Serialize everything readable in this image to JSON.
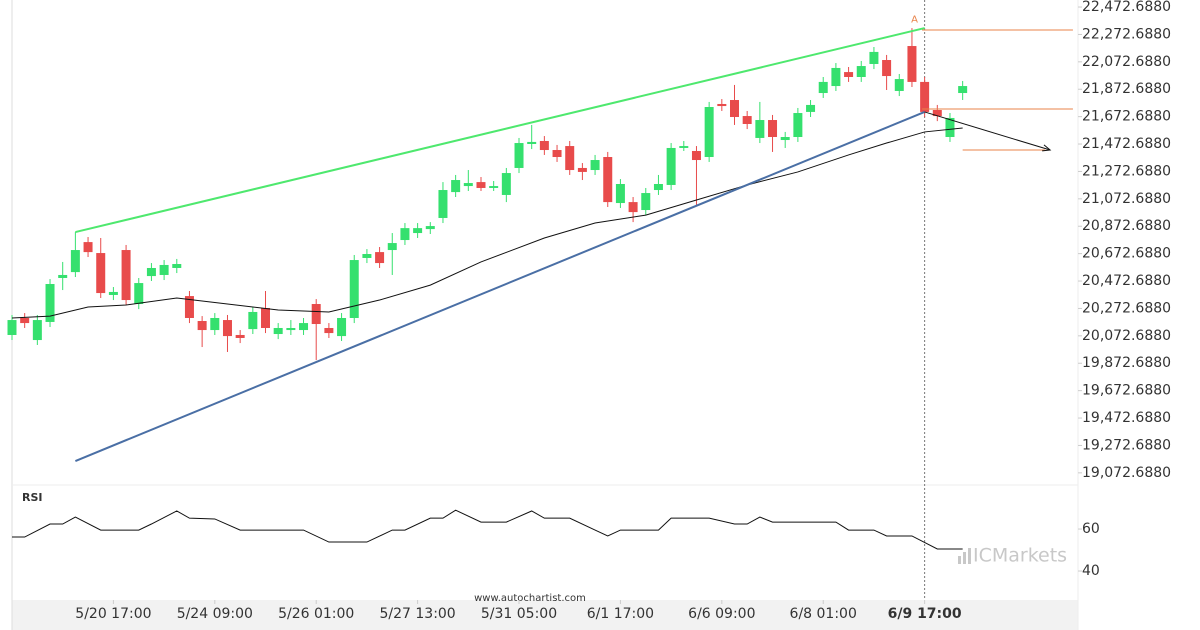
{
  "chart_data": {
    "type": "candlestick",
    "up_color": "#35e06e",
    "down_color": "#e84b4b",
    "candles": {
      "open": [
        20079,
        20203,
        20042,
        20174,
        20495,
        20538,
        20757,
        20677,
        20371,
        20699,
        20305,
        20509,
        20517,
        20568,
        20363,
        20181,
        20115,
        20188,
        20079,
        20122,
        20276,
        20086,
        20115,
        20115,
        20305,
        20130,
        20071,
        20203,
        20641,
        20684,
        20699,
        20772,
        20823,
        20852,
        20933,
        21122,
        21166,
        21195,
        21152,
        21101,
        21298,
        21473,
        21495,
        21429,
        21458,
        21298,
        21283,
        21378,
        21042,
        21049,
        20991,
        21137,
        21174,
        21444,
        21422,
        21378,
        21765,
        21794,
        21677,
        21517,
        21648,
        21502,
        21524,
        21707,
        21845,
        21896,
        21998,
        21962,
        22057,
        22086,
        21860,
        22188,
        21926,
        21721,
        21524,
        21845
      ],
      "high": [
        20225,
        20239,
        20225,
        20487,
        20612,
        20830,
        20794,
        20787,
        20429,
        20736,
        20495,
        20604,
        20626,
        20634,
        20400,
        20217,
        20239,
        20225,
        20115,
        20283,
        20400,
        20166,
        20188,
        20203,
        20341,
        20166,
        20239,
        20663,
        20706,
        20721,
        20823,
        20896,
        20896,
        20903,
        21195,
        21247,
        21283,
        21232,
        21203,
        21298,
        21517,
        21612,
        21531,
        21466,
        21495,
        21334,
        21393,
        21415,
        21217,
        21086,
        21152,
        21247,
        21480,
        21495,
        21458,
        21780,
        21801,
        21904,
        21714,
        21780,
        21685,
        21561,
        21736,
        21794,
        21962,
        22064,
        22035,
        22079,
        22181,
        22123,
        21984,
        22319,
        21962,
        21758,
        21699,
        21933
      ],
      "low": [
        20042,
        20130,
        20006,
        20137,
        20407,
        20502,
        20648,
        20349,
        20334,
        20298,
        20268,
        20473,
        20480,
        20531,
        20166,
        19991,
        20079,
        19955,
        20020,
        20086,
        20093,
        20049,
        20079,
        20079,
        19896,
        20057,
        20035,
        20166,
        20604,
        20568,
        20517,
        20736,
        20787,
        20816,
        20896,
        21086,
        21130,
        21130,
        21130,
        21049,
        21261,
        21436,
        21393,
        21342,
        21247,
        21210,
        21247,
        21013,
        21006,
        20903,
        20954,
        21101,
        21137,
        21422,
        21028,
        21342,
        21714,
        21612,
        21582,
        21480,
        21415,
        21444,
        21488,
        21670,
        21809,
        21860,
        21926,
        21926,
        22020,
        21867,
        21823,
        21889,
        21670,
        21640,
        21488,
        21794
      ],
      "close": [
        20188,
        20166,
        20188,
        20451,
        20517,
        20699,
        20684,
        20385,
        20393,
        20334,
        20458,
        20568,
        20590,
        20597,
        20203,
        20115,
        20203,
        20071,
        20057,
        20247,
        20130,
        20130,
        20130,
        20166,
        20159,
        20093,
        20203,
        20626,
        20670,
        20604,
        20750,
        20859,
        20859,
        20874,
        21137,
        21210,
        21188,
        21152,
        21166,
        21261,
        21480,
        21488,
        21429,
        21378,
        21283,
        21269,
        21356,
        21049,
        21181,
        20976,
        21115,
        21181,
        21444,
        21458,
        21356,
        21743,
        21750,
        21670,
        21619,
        21648,
        21524,
        21524,
        21699,
        21758,
        21926,
        22028,
        21962,
        22042,
        22145,
        21969,
        21947,
        21926,
        21707,
        21677,
        21663,
        21896
      ]
    },
    "xlim": [
      0,
      84.1
    ],
    "xticks": [
      {
        "value": 8,
        "label": "5/20 17:00"
      },
      {
        "value": 16,
        "label": "5/24 09:00"
      },
      {
        "value": 24,
        "label": "5/26 01:00"
      },
      {
        "value": 32,
        "label": "5/27 13:00"
      },
      {
        "value": 40,
        "label": "5/31 05:00"
      },
      {
        "value": 48,
        "label": "6/1 17:00"
      },
      {
        "value": 56,
        "label": "6/6 09:00"
      },
      {
        "value": 64,
        "label": "6/8 01:00"
      },
      {
        "value": 72,
        "label": "6/9 17:00"
      }
    ],
    "highlight_tick": 72,
    "ylim": [
      18984,
      22524
    ],
    "yticks": [
      {
        "value": 22472.688,
        "label": "22,472.6880"
      },
      {
        "value": 22272.688,
        "label": "22,272.6880"
      },
      {
        "value": 22072.688,
        "label": "22,072.6880"
      },
      {
        "value": 21872.688,
        "label": "21,872.6880"
      },
      {
        "value": 21672.688,
        "label": "21,672.6880"
      },
      {
        "value": 21472.688,
        "label": "21,472.6880"
      },
      {
        "value": 21272.688,
        "label": "21,272.6880"
      },
      {
        "value": 21072.688,
        "label": "21,072.6880"
      },
      {
        "value": 20872.688,
        "label": "20,872.6880"
      },
      {
        "value": 20672.688,
        "label": "20,672.6880"
      },
      {
        "value": 20472.688,
        "label": "20,472.6880"
      },
      {
        "value": 20272.688,
        "label": "20,272.6880"
      },
      {
        "value": 20072.688,
        "label": "20,072.6880"
      },
      {
        "value": 19872.688,
        "label": "19,872.6880"
      },
      {
        "value": 19672.688,
        "label": "19,672.6880"
      },
      {
        "value": 19472.688,
        "label": "19,472.6880"
      },
      {
        "value": 19272.688,
        "label": "19,272.6880"
      },
      {
        "value": 19072.688,
        "label": "19,072.6880"
      }
    ],
    "ma": {
      "color": "#111111",
      "x": [
        0,
        3,
        6,
        9,
        13,
        17,
        21,
        25,
        29,
        33,
        37,
        42,
        46,
        50,
        54,
        58,
        62,
        66,
        69,
        72,
        75
      ],
      "values": [
        20203,
        20217,
        20283,
        20298,
        20349,
        20305,
        20261,
        20247,
        20334,
        20443,
        20612,
        20787,
        20896,
        20954,
        21064,
        21174,
        21269,
        21393,
        21480,
        21561,
        21590
      ]
    },
    "trendlines": [
      {
        "color": "#4ee86e",
        "x": [
          5,
          72
        ],
        "values": [
          20830,
          22319
        ]
      },
      {
        "color": "#4a6fa5",
        "x": [
          5,
          72
        ],
        "values": [
          19159,
          21707
        ]
      }
    ],
    "levels": [
      {
        "color": "#e8834a",
        "value": 22305,
        "x": [
          71.8,
          83.7
        ]
      },
      {
        "color": "#e8834a",
        "value": 21728,
        "x": [
          71.8,
          83.7
        ]
      },
      {
        "color": "#e8834a",
        "value": 21429,
        "x": [
          75,
          81.5
        ]
      }
    ],
    "arrow": {
      "color": "#111111",
      "x": [
        72,
        81.9
      ],
      "values": [
        21707,
        21429
      ]
    },
    "marker": {
      "label": "A",
      "color": "#e8834a",
      "x": 71.2,
      "value": 22380
    },
    "rsi": {
      "label": "RSI",
      "color": "#111111",
      "ylim": [
        26.2,
        78.6
      ],
      "yticks": [
        40,
        60
      ],
      "x": [
        0,
        1,
        3,
        4,
        5,
        7,
        10,
        11,
        13,
        14,
        16,
        18,
        23,
        25,
        28,
        30,
        31,
        33,
        34,
        35,
        37,
        39,
        41,
        42,
        44,
        46,
        47,
        48,
        51,
        52,
        55,
        57,
        58,
        59,
        60,
        65,
        66,
        68,
        69,
        71,
        73,
        75
      ],
      "values": [
        56.2,
        56.2,
        62.4,
        62.4,
        65.7,
        59.5,
        59.5,
        62.4,
        68.6,
        65.2,
        64.8,
        59.5,
        59.5,
        53.8,
        53.8,
        59.5,
        59.5,
        65.2,
        65.2,
        69.0,
        63.3,
        63.3,
        68.6,
        65.2,
        65.2,
        59.5,
        56.7,
        59.5,
        59.5,
        65.2,
        65.2,
        62.4,
        62.4,
        65.7,
        63.3,
        63.3,
        59.5,
        59.5,
        56.7,
        56.7,
        50.5,
        50.5
      ]
    },
    "source": "www.autochartist.com",
    "watermark": "ICMarkets"
  }
}
